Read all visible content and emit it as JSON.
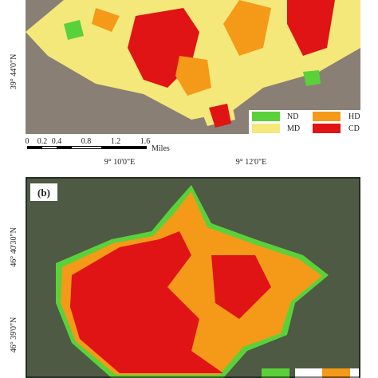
{
  "panel_a": {
    "lat_label": "39° 44'0\"N",
    "lon_labels": [
      "9° 10'0\"E",
      "9° 12'0\"E"
    ],
    "scale_bar": {
      "ticks": [
        "0",
        "0.2",
        "0.4",
        "0.8",
        "1.2",
        "1.6"
      ],
      "unit": "Miles"
    },
    "legend": [
      "ND",
      "HD",
      "MD",
      "CD"
    ]
  },
  "panel_b": {
    "label": "(b)",
    "lat_labels": [
      "46° 40'30\"N",
      "46° 39'0\"N"
    ]
  }
}
